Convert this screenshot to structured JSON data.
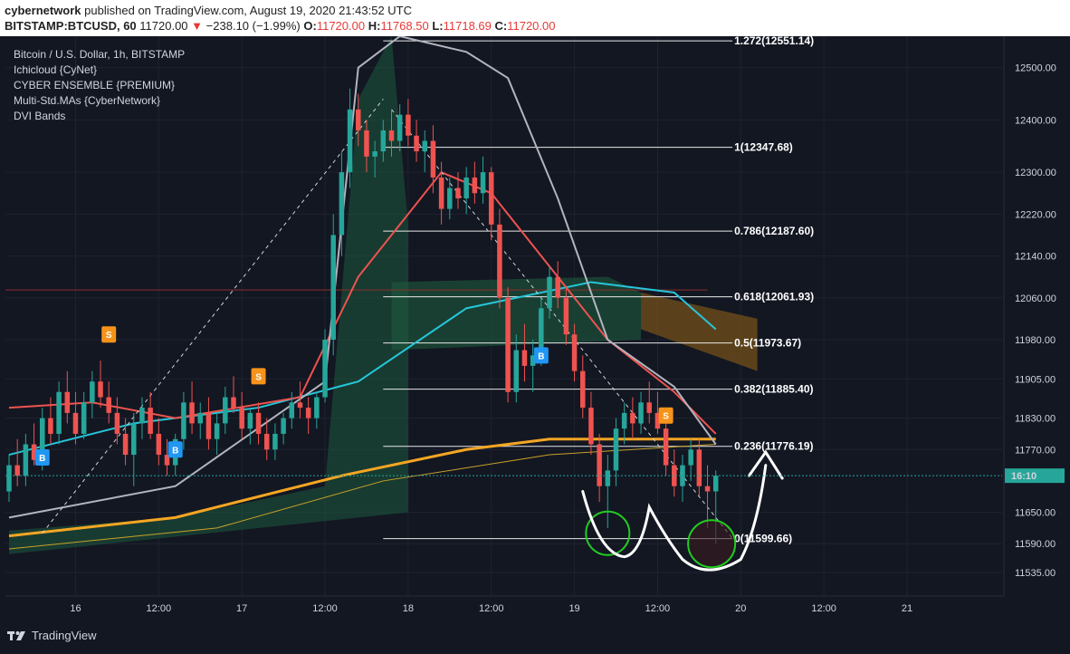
{
  "header": {
    "publisher": "cybernetwork",
    "published_text": "published on TradingView.com, August 19, 2020 21:43:52 UTC",
    "symbol": "BITSTAMP:BTCUSD, 60",
    "last": "11720.00",
    "change": "−238.10 (−1.99%)",
    "o_label": "O:",
    "o": "11720.00",
    "h_label": "H:",
    "h": "11768.50",
    "l_label": "L:",
    "l": "11718.69",
    "c_label": "C:",
    "c": "11720.00"
  },
  "legend": {
    "title": "Bitcoin / U.S. Dollar, 1h, BITSTAMP",
    "ind1": "Ichicloud {CyNet}",
    "ind2": "CYBER ENSEMBLE {PREMIUM}",
    "ind3": "Multi-Std.MAs {CyberNetwork}",
    "ind4": "DVI Bands"
  },
  "footer": {
    "brand": "TradingView"
  },
  "price_tag": "16:10",
  "chart_data": {
    "type": "candlestick",
    "symbol": "BTCUSD",
    "interval": "1h",
    "ylim": [
      11490,
      12560
    ],
    "xlim": [
      0,
      119
    ],
    "y_ticks": [
      12500,
      12400,
      12300,
      12220,
      12140,
      12060,
      11980,
      11905,
      11830,
      11770,
      11650,
      11590,
      11535
    ],
    "y_tick_labels": [
      "12500.00",
      "12400.00",
      "12300.00",
      "12220.00",
      "12140.00",
      "12060.00",
      "11980.00",
      "11905.00",
      "11830.00",
      "11770.00",
      "11650.00",
      "11590.00",
      "11535.00"
    ],
    "x_ticks": [
      {
        "x": 8,
        "label": "16"
      },
      {
        "x": 18,
        "label": "12:00"
      },
      {
        "x": 28,
        "label": "17"
      },
      {
        "x": 38,
        "label": "12:00"
      },
      {
        "x": 48,
        "label": "18"
      },
      {
        "x": 58,
        "label": "12:00"
      },
      {
        "x": 68,
        "label": "19"
      },
      {
        "x": 78,
        "label": "12:00"
      },
      {
        "x": 88,
        "label": "20"
      },
      {
        "x": 98,
        "label": "12:00"
      },
      {
        "x": 108,
        "label": "21"
      }
    ],
    "current_price": 11720,
    "fibonacci": [
      {
        "level": 12551.14,
        "label": "1.272(12551.14)"
      },
      {
        "level": 12347.68,
        "label": "1(12347.68)"
      },
      {
        "level": 12187.6,
        "label": "0.786(12187.60)"
      },
      {
        "level": 12061.93,
        "label": "0.618(12061.93)"
      },
      {
        "level": 11973.67,
        "label": "0.5(11973.67)"
      },
      {
        "level": 11885.4,
        "label": "0.382(11885.40)"
      },
      {
        "level": 11776.19,
        "label": "0.236(11776.19)"
      },
      {
        "level": 11599.66,
        "label": "0(11599.66)"
      }
    ],
    "candles": [
      [
        0,
        11690,
        11760,
        11670,
        11740
      ],
      [
        1,
        11740,
        11790,
        11700,
        11720
      ],
      [
        2,
        11720,
        11800,
        11700,
        11780
      ],
      [
        3,
        11780,
        11820,
        11740,
        11750
      ],
      [
        4,
        11750,
        11850,
        11730,
        11830
      ],
      [
        5,
        11830,
        11870,
        11780,
        11800
      ],
      [
        6,
        11800,
        11900,
        11780,
        11880
      ],
      [
        7,
        11880,
        11920,
        11820,
        11840
      ],
      [
        8,
        11840,
        11880,
        11780,
        11800
      ],
      [
        9,
        11800,
        11880,
        11790,
        11860
      ],
      [
        10,
        11860,
        11920,
        11830,
        11900
      ],
      [
        11,
        11900,
        11940,
        11850,
        11870
      ],
      [
        12,
        11870,
        11900,
        11820,
        11840
      ],
      [
        13,
        11840,
        11870,
        11780,
        11800
      ],
      [
        14,
        11800,
        11830,
        11740,
        11760
      ],
      [
        15,
        11760,
        11840,
        11700,
        11820
      ],
      [
        16,
        11820,
        11870,
        11790,
        11850
      ],
      [
        17,
        11850,
        11880,
        11790,
        11800
      ],
      [
        18,
        11800,
        11830,
        11740,
        11760
      ],
      [
        19,
        11760,
        11790,
        11720,
        11740
      ],
      [
        20,
        11740,
        11800,
        11720,
        11790
      ],
      [
        21,
        11790,
        11880,
        11770,
        11860
      ],
      [
        22,
        11860,
        11900,
        11800,
        11820
      ],
      [
        23,
        11820,
        11860,
        11790,
        11840
      ],
      [
        24,
        11840,
        11870,
        11770,
        11790
      ],
      [
        25,
        11790,
        11840,
        11760,
        11820
      ],
      [
        26,
        11820,
        11890,
        11800,
        11870
      ],
      [
        27,
        11870,
        11910,
        11840,
        11850
      ],
      [
        28,
        11850,
        11880,
        11790,
        11810
      ],
      [
        29,
        11810,
        11850,
        11780,
        11840
      ],
      [
        30,
        11840,
        11860,
        11780,
        11800
      ],
      [
        31,
        11800,
        11830,
        11750,
        11770
      ],
      [
        32,
        11770,
        11820,
        11750,
        11800
      ],
      [
        33,
        11800,
        11840,
        11780,
        11830
      ],
      [
        34,
        11830,
        11880,
        11810,
        11860
      ],
      [
        35,
        11860,
        11900,
        11830,
        11850
      ],
      [
        36,
        11850,
        11870,
        11800,
        11830
      ],
      [
        37,
        11830,
        11880,
        11810,
        11870
      ],
      [
        38,
        11870,
        12000,
        11860,
        11980
      ],
      [
        39,
        11980,
        12220,
        11950,
        12180
      ],
      [
        40,
        12180,
        12340,
        12140,
        12300
      ],
      [
        41,
        12300,
        12460,
        12270,
        12420
      ],
      [
        42,
        12420,
        12450,
        12350,
        12380
      ],
      [
        43,
        12380,
        12400,
        12300,
        12330
      ],
      [
        44,
        12330,
        12360,
        12290,
        12340
      ],
      [
        45,
        12340,
        12400,
        12320,
        12380
      ],
      [
        46,
        12380,
        12420,
        12330,
        12360
      ],
      [
        47,
        12360,
        12430,
        12340,
        12410
      ],
      [
        48,
        12410,
        12440,
        12350,
        12370
      ],
      [
        49,
        12370,
        12400,
        12320,
        12340
      ],
      [
        50,
        12340,
        12380,
        12300,
        12360
      ],
      [
        51,
        12360,
        12390,
        12260,
        12290
      ],
      [
        52,
        12290,
        12320,
        12200,
        12230
      ],
      [
        53,
        12230,
        12290,
        12210,
        12270
      ],
      [
        54,
        12270,
        12300,
        12230,
        12250
      ],
      [
        55,
        12250,
        12310,
        12220,
        12290
      ],
      [
        56,
        12290,
        12320,
        12240,
        12260
      ],
      [
        57,
        12260,
        12330,
        12240,
        12300
      ],
      [
        58,
        12300,
        12310,
        12170,
        12200
      ],
      [
        59,
        12200,
        12230,
        12040,
        12060
      ],
      [
        60,
        12060,
        12080,
        11860,
        11880
      ],
      [
        61,
        11880,
        11990,
        11860,
        11960
      ],
      [
        62,
        11960,
        12010,
        11900,
        11930
      ],
      [
        63,
        11930,
        11980,
        11880,
        11950
      ],
      [
        64,
        11950,
        12060,
        11930,
        12040
      ],
      [
        65,
        12040,
        12120,
        12020,
        12100
      ],
      [
        66,
        12100,
        12130,
        12040,
        12060
      ],
      [
        67,
        12060,
        12080,
        11970,
        11990
      ],
      [
        68,
        11990,
        12010,
        11900,
        11920
      ],
      [
        69,
        11920,
        11950,
        11830,
        11850
      ],
      [
        70,
        11850,
        11880,
        11760,
        11780
      ],
      [
        71,
        11780,
        11800,
        11670,
        11700
      ],
      [
        72,
        11700,
        11760,
        11620,
        11730
      ],
      [
        73,
        11730,
        11830,
        11700,
        11810
      ],
      [
        74,
        11810,
        11860,
        11780,
        11840
      ],
      [
        75,
        11840,
        11870,
        11790,
        11820
      ],
      [
        76,
        11820,
        11880,
        11800,
        11860
      ],
      [
        77,
        11860,
        11900,
        11820,
        11840
      ],
      [
        78,
        11840,
        11880,
        11800,
        11810
      ],
      [
        79,
        11810,
        11830,
        11720,
        11740
      ],
      [
        80,
        11740,
        11770,
        11680,
        11700
      ],
      [
        81,
        11700,
        11760,
        11670,
        11740
      ],
      [
        82,
        11740,
        11790,
        11710,
        11770
      ],
      [
        83,
        11770,
        11790,
        11680,
        11700
      ],
      [
        84,
        11700,
        11740,
        11620,
        11690
      ],
      [
        85,
        11690,
        11730,
        11590,
        11720
      ]
    ]
  }
}
